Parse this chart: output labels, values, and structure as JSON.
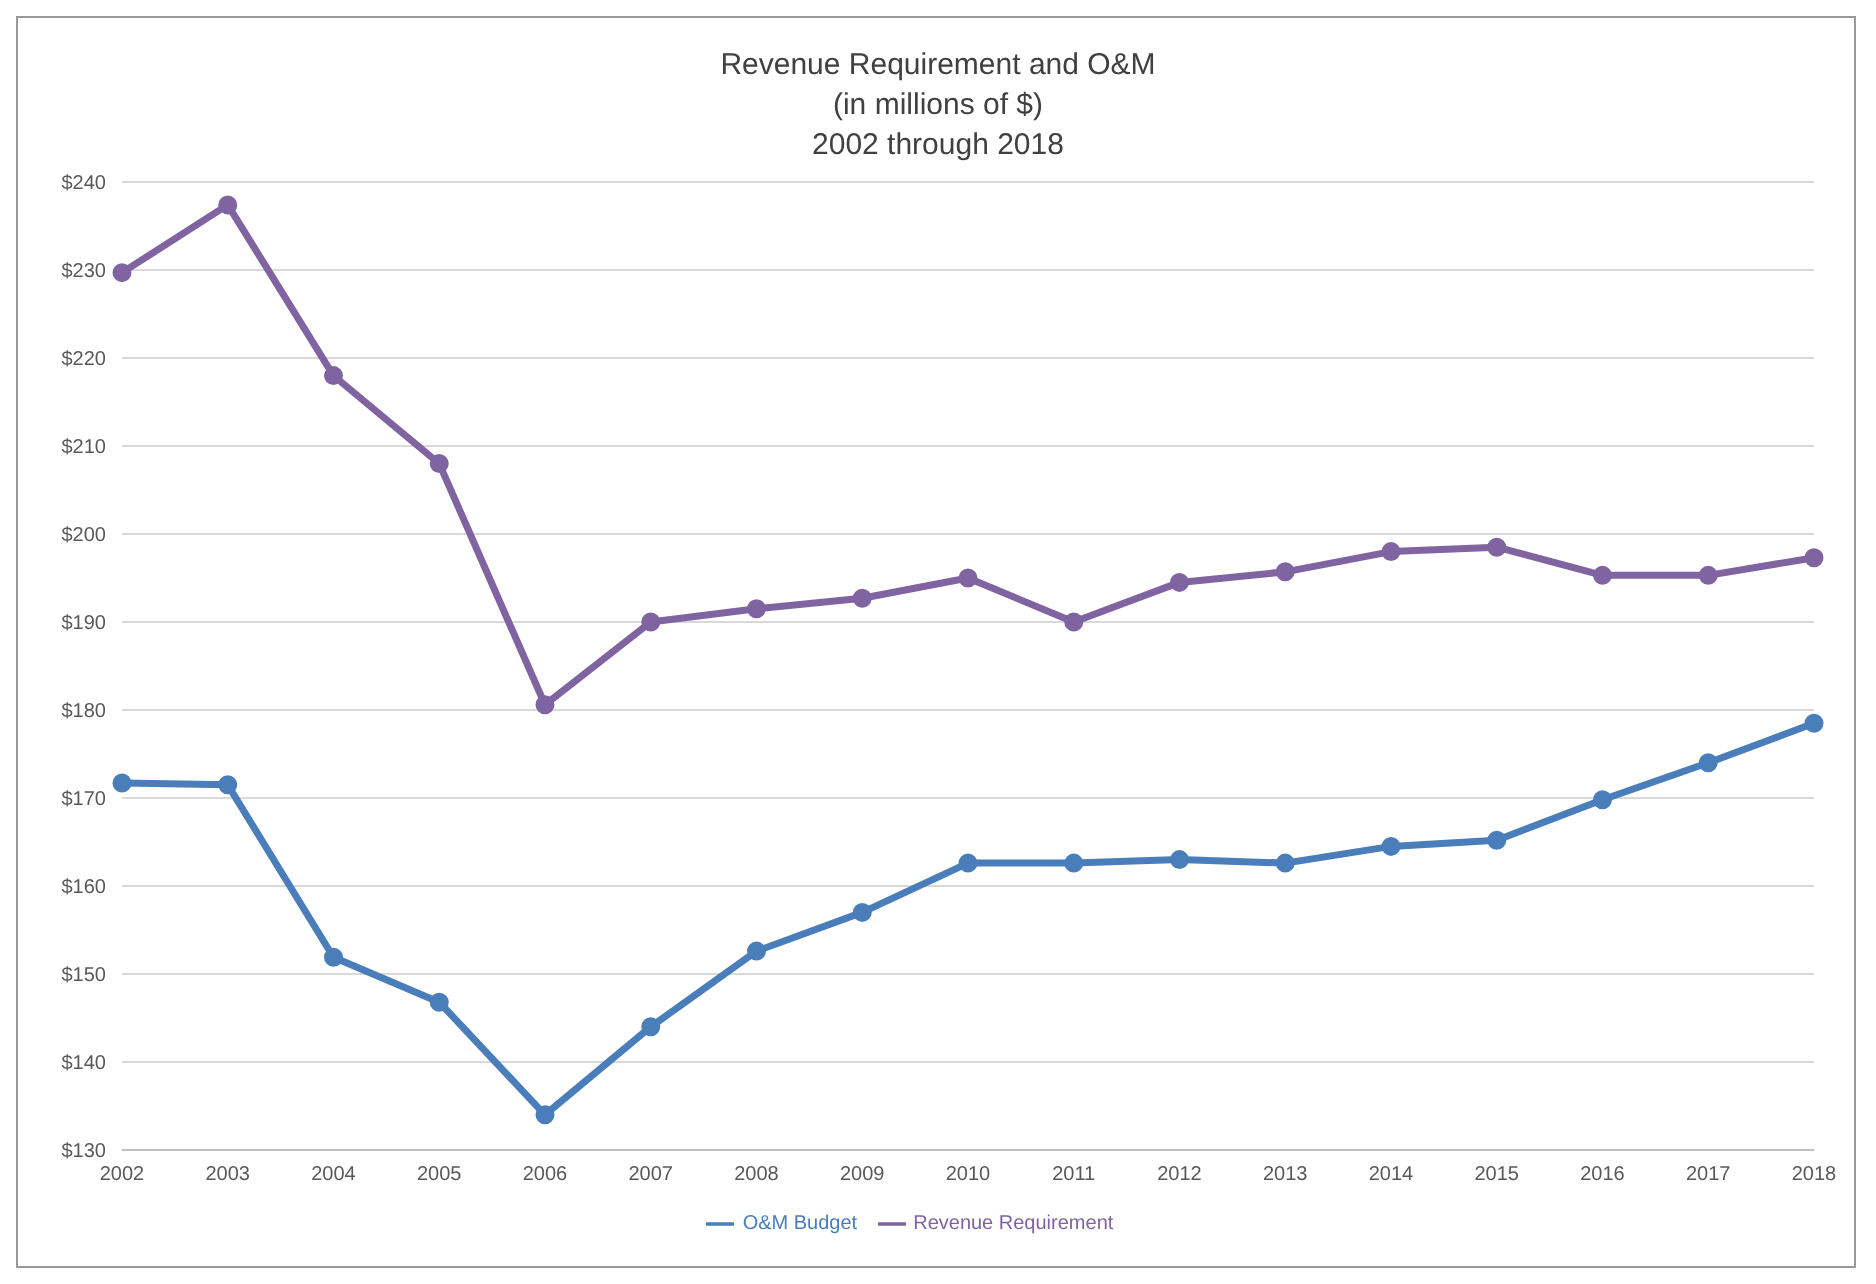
{
  "chart_data": {
    "type": "line",
    "title": "Revenue Requirement and O&M\n(in millions of $)\n2002 through 2018",
    "categories": [
      "2002",
      "2003",
      "2004",
      "2005",
      "2006",
      "2007",
      "2008",
      "2009",
      "2010",
      "2011",
      "2012",
      "2013",
      "2014",
      "2015",
      "2016",
      "2017",
      "2018"
    ],
    "series": [
      {
        "name": "O&M Budget",
        "color": "#4a7ebb",
        "values": [
          171.7,
          171.5,
          151.9,
          146.8,
          134,
          144,
          152.6,
          157,
          162.6,
          162.6,
          163,
          162.6,
          164.5,
          165.2,
          169.8,
          174,
          178.5
        ]
      },
      {
        "name": "Revenue Requirement",
        "color": "#8064a2",
        "values": [
          229.7,
          237.4,
          218,
          208,
          180.6,
          190,
          191.5,
          192.7,
          195,
          190,
          194.5,
          195.7,
          198,
          198.5,
          195.3,
          195.3,
          197.3
        ]
      }
    ],
    "ylim": [
      130,
      240
    ],
    "yticks": [
      {
        "value": 130,
        "label": "$130"
      },
      {
        "value": 140,
        "label": "$140"
      },
      {
        "value": 150,
        "label": "$150"
      },
      {
        "value": 160,
        "label": "$160"
      },
      {
        "value": 170,
        "label": "$170"
      },
      {
        "value": 180,
        "label": "$180"
      },
      {
        "value": 190,
        "label": "$190"
      },
      {
        "value": 200,
        "label": "$200"
      },
      {
        "value": 210,
        "label": "$210"
      },
      {
        "value": 220,
        "label": "$220"
      },
      {
        "value": 230,
        "label": "$230"
      },
      {
        "value": 240,
        "label": "$240"
      }
    ],
    "grid": "y",
    "legend": "bottom",
    "marker": "circle",
    "line_style": "solid"
  }
}
